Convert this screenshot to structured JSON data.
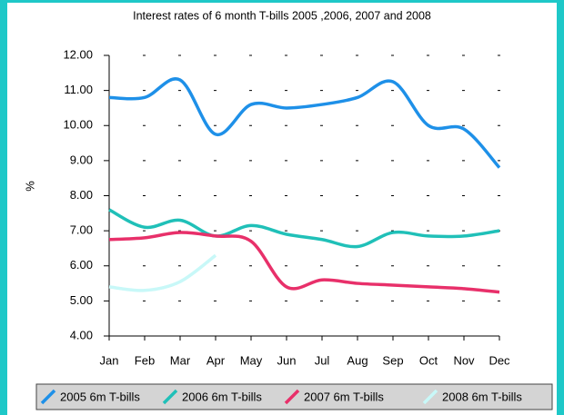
{
  "chart_data": {
    "type": "line",
    "title": "Interest rates of 6 month T-bills 2005 ,2006, 2007 and 2008",
    "ylabel": "%",
    "categories": [
      "Jan",
      "Feb",
      "Mar",
      "Apr",
      "May",
      "Jun",
      "Jul",
      "Aug",
      "Sep",
      "Oct",
      "Nov",
      "Dec"
    ],
    "series": [
      {
        "name": "2005 6m T-bills",
        "color": "#1e90e8",
        "values": [
          10.8,
          10.8,
          11.3,
          9.75,
          10.6,
          10.5,
          10.6,
          10.8,
          11.25,
          10.0,
          9.9,
          8.8
        ]
      },
      {
        "name": "2006 6m T-bills",
        "color": "#20c0b8",
        "values": [
          7.6,
          7.1,
          7.3,
          6.85,
          7.15,
          6.9,
          6.75,
          6.55,
          6.95,
          6.85,
          6.85,
          7.0
        ]
      },
      {
        "name": "2007 6m T-bills",
        "color": "#e8306a",
        "values": [
          6.75,
          6.8,
          6.95,
          6.85,
          6.7,
          5.4,
          5.6,
          5.5,
          5.45,
          5.4,
          5.35,
          5.25
        ]
      },
      {
        "name": "2008 6m T-bills",
        "color": "#c8f8f8",
        "values": [
          5.4,
          5.3,
          5.55,
          6.3,
          null,
          null,
          null,
          null,
          null,
          null,
          null,
          null
        ]
      }
    ],
    "ylim": [
      4,
      12
    ],
    "yticks": [
      {
        "value": 4,
        "label": "4.00"
      },
      {
        "value": 5,
        "label": "5.00"
      },
      {
        "value": 6,
        "label": "6.00"
      },
      {
        "value": 7,
        "label": "7.00"
      },
      {
        "value": 8,
        "label": "8.00"
      },
      {
        "value": 9,
        "label": "9.00"
      },
      {
        "value": 10,
        "label": "10.00"
      },
      {
        "value": 11,
        "label": "11.00"
      },
      {
        "value": 12,
        "label": "12.00"
      }
    ],
    "grid": true,
    "legend": "bottom",
    "smooth": true
  }
}
